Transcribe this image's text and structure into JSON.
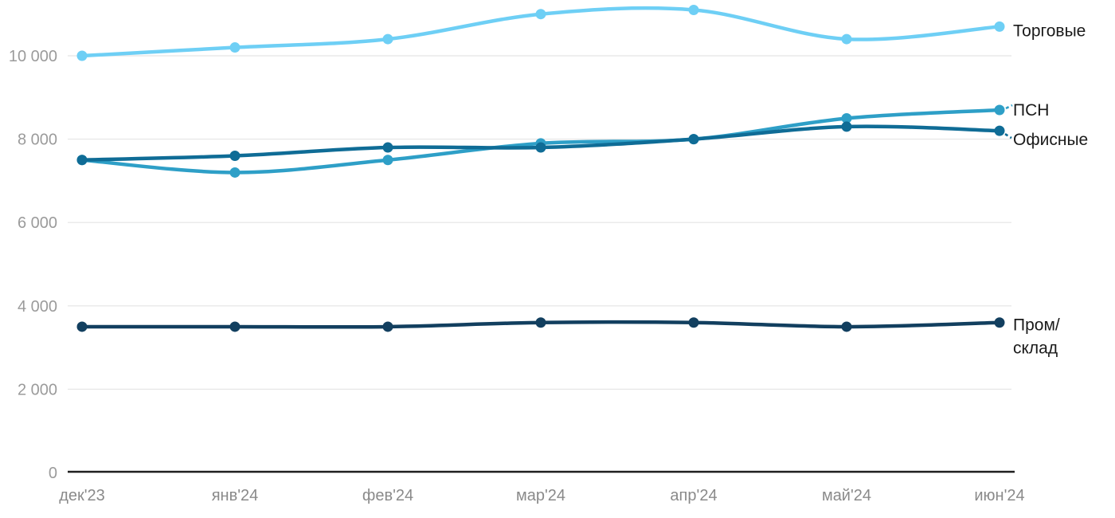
{
  "chart_data": {
    "type": "line",
    "categories": [
      "дек'23",
      "янв'24",
      "фев'24",
      "мар'24",
      "апр'24",
      "май'24",
      "июн'24"
    ],
    "y_ticks": [
      {
        "value": 0,
        "label": "0"
      },
      {
        "value": 2000,
        "label": "2 000"
      },
      {
        "value": 4000,
        "label": "4 000"
      },
      {
        "value": 6000,
        "label": "6 000"
      },
      {
        "value": 8000,
        "label": "8 000"
      },
      {
        "value": 10000,
        "label": "10 000"
      }
    ],
    "ylim": [
      0,
      11500
    ],
    "grid": "horizontal-only",
    "legend_position": "right-edge-direct-labels",
    "series": [
      {
        "name": "Торговые",
        "label_lines": [
          "Торговые"
        ],
        "color": "#6ECFF5",
        "values": [
          10000,
          10200,
          10400,
          11000,
          11100,
          10400,
          10700
        ]
      },
      {
        "name": "ПСН",
        "label_lines": [
          "ПСН"
        ],
        "color": "#2E9FC7",
        "values": [
          7500,
          7200,
          7500,
          7900,
          8000,
          8500,
          8700
        ]
      },
      {
        "name": "Офисные",
        "label_lines": [
          "Офисные"
        ],
        "color": "#0F6C96",
        "values": [
          7500,
          7600,
          7800,
          7800,
          8000,
          8300,
          8200
        ]
      },
      {
        "name": "Пром/склад",
        "label_lines": [
          "Пром/",
          "склад"
        ],
        "color": "#123F5F",
        "values": [
          3500,
          3500,
          3500,
          3600,
          3600,
          3500,
          3600
        ]
      }
    ]
  },
  "colors": {
    "background": "#FFFFFF",
    "grid": "#E8E8E8",
    "axis_line": "#1F1F1F",
    "y_tick_label": "#9B9B9B",
    "x_tick_label": "#8A8A8A",
    "series_label": "#1A1A1A"
  }
}
